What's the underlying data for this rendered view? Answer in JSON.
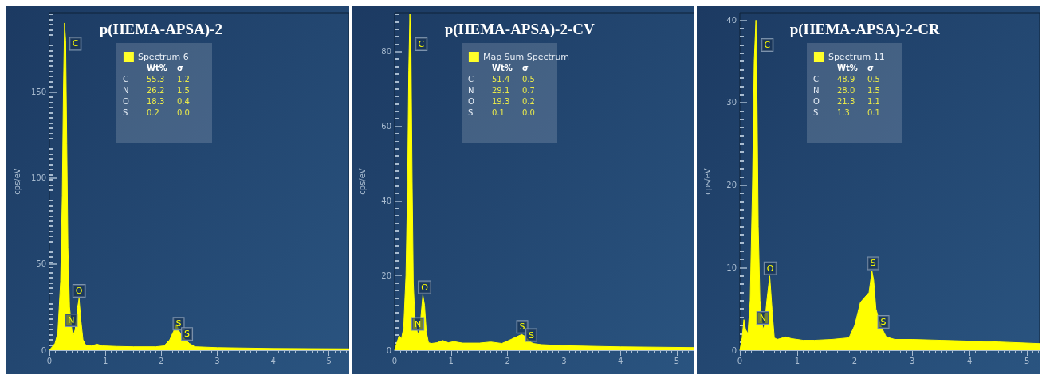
{
  "chart_data": [
    {
      "type": "area",
      "title": "p(HEMA-APSA)-2",
      "ylabel": "cps/eV",
      "xlim": [
        0,
        5.36
      ],
      "xticks": [
        0,
        1,
        2,
        3,
        4,
        5
      ],
      "ylim": [
        0,
        196
      ],
      "yticks": [
        0,
        50,
        100,
        150
      ],
      "grid": false,
      "legend": "top",
      "marker": "none",
      "series": [
        {
          "name": "Spectrum 6",
          "color": "#ffff00",
          "x": [
            0,
            0.05,
            0.1,
            0.15,
            0.2,
            0.23,
            0.25,
            0.27,
            0.29,
            0.31,
            0.33,
            0.36,
            0.4,
            0.42,
            0.46,
            0.5,
            0.53,
            0.56,
            0.6,
            0.65,
            0.75,
            0.85,
            0.95,
            1.2,
            1.5,
            1.9,
            2.05,
            2.15,
            2.22,
            2.27,
            2.32,
            2.4,
            2.5,
            2.6,
            3,
            4,
            5.36
          ],
          "values": [
            0,
            2,
            4,
            10,
            40,
            90,
            150,
            190,
            180,
            120,
            60,
            25,
            12,
            8,
            12,
            24,
            30,
            18,
            6,
            3,
            2.5,
            3.5,
            2.5,
            2.2,
            2,
            2,
            2.5,
            6,
            11,
            15,
            11,
            7,
            4,
            2,
            1.5,
            1,
            0.8
          ]
        }
      ],
      "annotations": [
        {
          "text": "C",
          "x": 0.28,
          "y": 178
        },
        {
          "text": "N",
          "x": 0.39,
          "y": 13
        },
        {
          "text": "O",
          "x": 0.53,
          "y": 30
        },
        {
          "text": "S",
          "x": 2.31,
          "y": 11
        },
        {
          "text": "S",
          "x": 2.46,
          "y": 5
        },
        "Wt%",
        "σ",
        "C",
        "55.3",
        "1.2",
        "N",
        "26.2",
        "1.5",
        "O",
        "18.3",
        "0.4",
        "S",
        "0.2",
        "0.0"
      ]
    },
    {
      "type": "area",
      "title": "p(HEMA-APSA)-2-CV",
      "ylabel": "cps/eV",
      "xlim": [
        0,
        5.31
      ],
      "xticks": [
        0,
        1,
        2,
        3,
        4,
        5
      ],
      "ylim": [
        0,
        90.4
      ],
      "yticks": [
        0,
        20,
        40,
        60,
        80
      ],
      "grid": false,
      "legend": "top",
      "marker": "none",
      "series": [
        {
          "name": "Map Sum Spectrum",
          "color": "#ffff00",
          "x": [
            0,
            0.04,
            0.08,
            0.12,
            0.16,
            0.2,
            0.23,
            0.25,
            0.27,
            0.29,
            0.31,
            0.33,
            0.36,
            0.4,
            0.43,
            0.46,
            0.5,
            0.53,
            0.56,
            0.6,
            0.65,
            0.75,
            0.85,
            0.95,
            1.05,
            1.2,
            1.5,
            1.7,
            1.9,
            2.05,
            2.15,
            2.25,
            2.3,
            2.38,
            2.45,
            2.6,
            3,
            4,
            5.31
          ],
          "values": [
            0,
            2,
            3.9,
            3,
            6,
            20,
            45,
            75,
            90,
            80,
            45,
            18,
            8,
            5,
            3.9,
            8,
            14.8,
            12,
            5,
            2,
            1.8,
            2,
            2.6,
            2,
            2.3,
            1.9,
            1.9,
            2.2,
            1.8,
            2.8,
            3.5,
            4.2,
            3.8,
            2.5,
            1.8,
            1.5,
            1.2,
            0.9,
            0.7
          ]
        }
      ],
      "annotations": [
        {
          "text": "C",
          "x": 0.29,
          "y": 82
        },
        {
          "text": "N",
          "x": 0.41,
          "y": 5
        },
        {
          "text": "O",
          "x": 0.53,
          "y": 14.8
        },
        {
          "text": "S",
          "x": 2.26,
          "y": 4.2
        },
        {
          "text": "S",
          "x": 2.42,
          "y": 2
        },
        "Wt%",
        "σ",
        "C",
        "51.4",
        "0.5",
        "N",
        "29.1",
        "0.7",
        "O",
        "19.3",
        "0.2",
        "S",
        "0.1",
        "0.0"
      ]
    },
    {
      "type": "area",
      "title": "p(HEMA-APSA)-2-CR",
      "ylabel": "cps/eV",
      "xlim": [
        0,
        5.22
      ],
      "xticks": [
        0,
        1,
        2,
        3,
        4,
        5
      ],
      "ylim": [
        0,
        40.9
      ],
      "yticks": [
        0,
        10,
        20,
        30,
        40
      ],
      "grid": false,
      "legend": "top",
      "marker": "none",
      "series": [
        {
          "name": "Spectrum 11",
          "color": "#ffff00",
          "x": [
            0,
            0.04,
            0.07,
            0.1,
            0.14,
            0.18,
            0.22,
            0.25,
            0.28,
            0.3,
            0.32,
            0.35,
            0.4,
            0.43,
            0.47,
            0.52,
            0.56,
            0.6,
            0.65,
            0.8,
            0.9,
            1.1,
            1.3,
            1.6,
            1.9,
            2.0,
            2.1,
            2.15,
            2.25,
            2.3,
            2.33,
            2.37,
            2.45,
            2.55,
            2.7,
            3,
            3.5,
            4,
            4.5,
            5.22
          ],
          "values": [
            0,
            1.5,
            3.7,
            2.5,
            2,
            6,
            20,
            35,
            40,
            30,
            15,
            6,
            2.5,
            3,
            6,
            9,
            5,
            1.5,
            1.3,
            1.6,
            1.4,
            1.2,
            1.2,
            1.3,
            1.5,
            3,
            5.8,
            6.2,
            7,
            9.6,
            8.5,
            5,
            3,
            1.6,
            1.3,
            1.3,
            1.2,
            1.1,
            1,
            0.8
          ]
        }
      ],
      "annotations": [
        {
          "text": "C",
          "x": 0.3,
          "y": 37
        },
        {
          "text": "N",
          "x": 0.4,
          "y": 3
        },
        {
          "text": "O",
          "x": 0.53,
          "y": 9
        },
        {
          "text": "S",
          "x": 2.32,
          "y": 9.6
        },
        {
          "text": "S",
          "x": 2.5,
          "y": 2.5
        },
        "Wt%",
        "σ",
        "C",
        "48.9",
        "0.5",
        "N",
        "28.0",
        "1.5",
        "O",
        "21.3",
        "1.1",
        "S",
        "1.3",
        "0.1"
      ]
    }
  ]
}
